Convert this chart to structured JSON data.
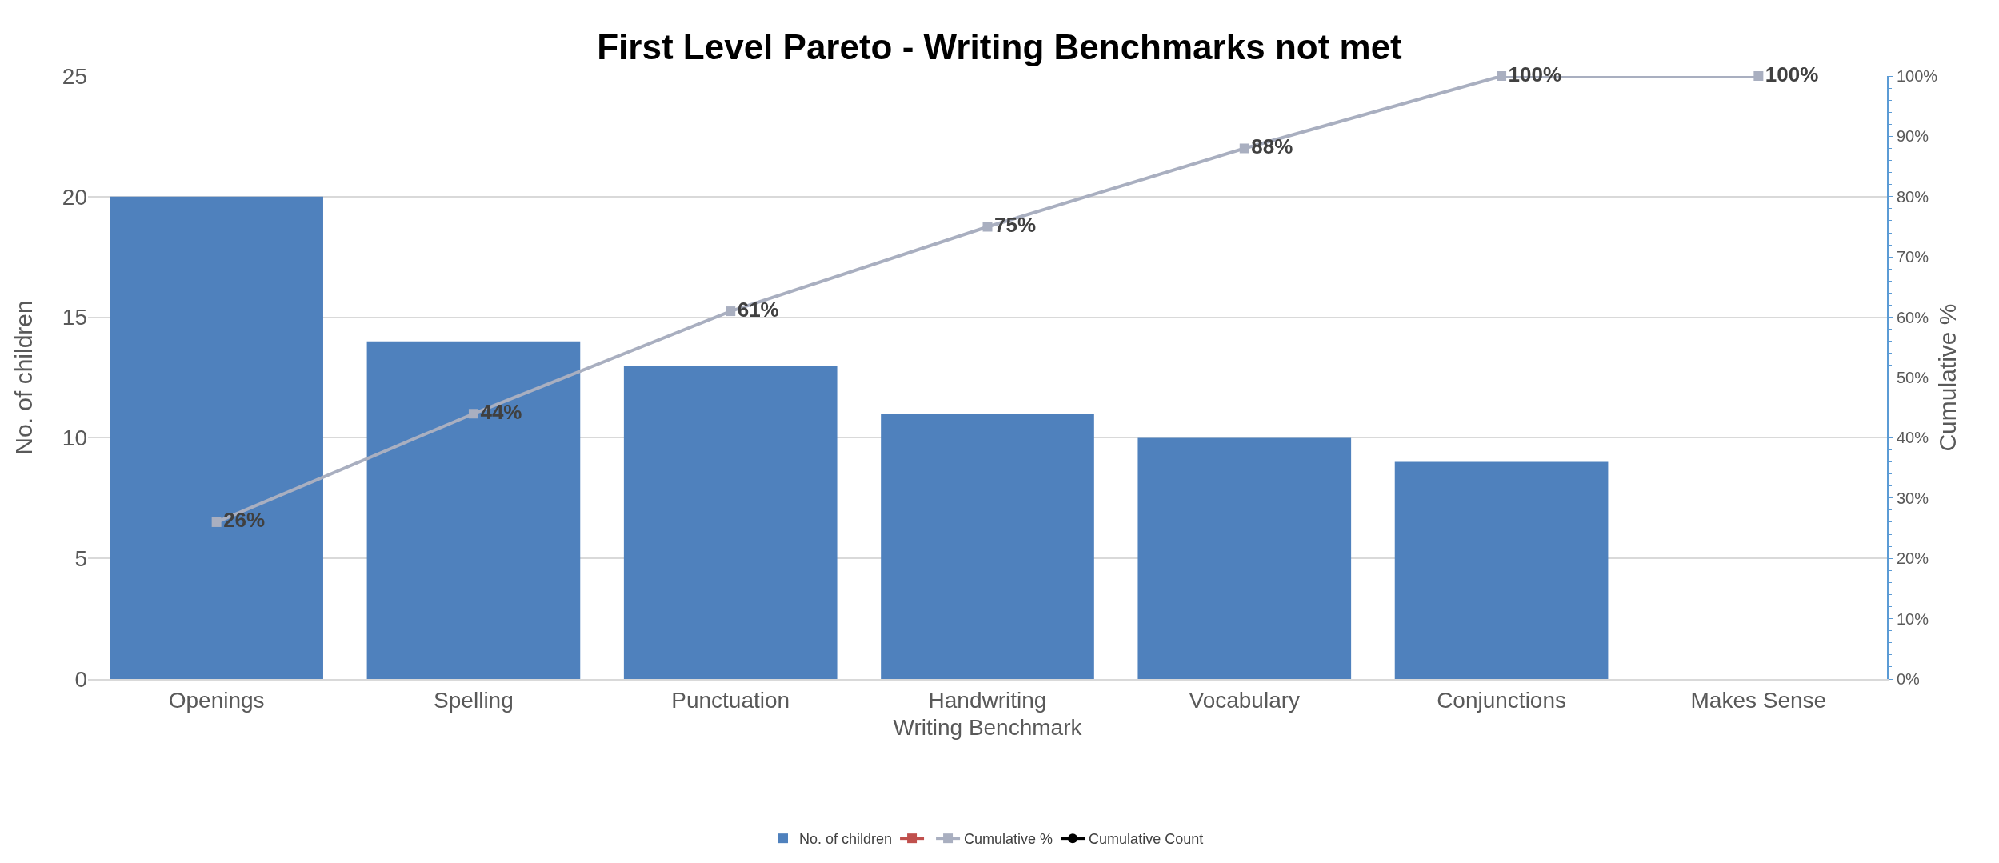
{
  "chart_data": {
    "type": "bar",
    "title": "First Level Pareto - Writing Benchmarks not met",
    "xlabel": "Writing Benchmark",
    "ylabel": "No. of children",
    "y2label": "Cumulative %",
    "categories": [
      "Openings",
      "Spelling",
      "Punctuation",
      "Handwriting",
      "Vocabulary",
      "Conjunctions",
      "Makes Sense"
    ],
    "series": [
      {
        "name": "No. of children",
        "color": "#4f81bd",
        "values": [
          20,
          14,
          13,
          11,
          10,
          9,
          0
        ]
      },
      {
        "type": "line",
        "color": "#c0504d",
        "marker": "square",
        "values": [
          null,
          null,
          null,
          null,
          null,
          null,
          null
        ]
      },
      {
        "name": "Cumulative %",
        "type": "line",
        "axis": "y2",
        "color": "#a9afc0",
        "marker": "square",
        "values": [
          26,
          44,
          61,
          75,
          88,
          100,
          100
        ],
        "value_labels": [
          "26%",
          "44%",
          "61%",
          "75%",
          "88%",
          "100%",
          "100%"
        ]
      },
      {
        "name": "Cumulative Count",
        "type": "line",
        "color": "#000000",
        "marker": "circle",
        "values": [
          null,
          null,
          null,
          null,
          null,
          null,
          null
        ]
      }
    ],
    "ylim": [
      0,
      25
    ],
    "yticks": [
      0,
      5,
      10,
      15,
      20,
      25
    ],
    "y2lim": [
      0,
      100
    ],
    "y2ticks": [
      {
        "value": 0,
        "label": "0%"
      },
      {
        "value": 10,
        "label": "10%"
      },
      {
        "value": 20,
        "label": "20%"
      },
      {
        "value": 30,
        "label": "30%"
      },
      {
        "value": 40,
        "label": "40%"
      },
      {
        "value": 50,
        "label": "50%"
      },
      {
        "value": 60,
        "label": "60%"
      },
      {
        "value": 70,
        "label": "70%"
      },
      {
        "value": 80,
        "label": "80%"
      },
      {
        "value": 90,
        "label": "90%"
      },
      {
        "value": 100,
        "label": "100%"
      }
    ],
    "grid": "y",
    "legend": "bottom"
  }
}
